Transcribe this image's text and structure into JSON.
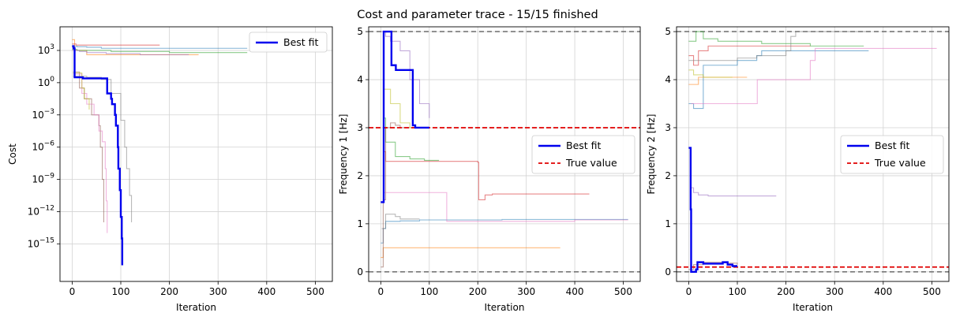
{
  "figure": {
    "title": "Cost and parameter trace - 15/15 finished"
  },
  "colors": {
    "best_fit": "#0000ee",
    "true_value": "#e00000",
    "bounds": "#777777",
    "grid": "#d3d3d3",
    "runs": [
      "#1f77b4",
      "#ff7f0e",
      "#2ca02c",
      "#d62728",
      "#9467bd",
      "#8c564b",
      "#e377c2",
      "#7f7f7f",
      "#bcbd22",
      "#17becf"
    ]
  },
  "chart_data": [
    {
      "type": "line",
      "ylabel": "Cost",
      "xlabel": "Iteration",
      "xlim": [
        -25,
        535
      ],
      "ylim_log10": [
        -18.5,
        5.2
      ],
      "yscale": "log",
      "grid": true,
      "legend": "top-right",
      "x_ticks": [
        "0",
        "100",
        "200",
        "300",
        "400",
        "500"
      ],
      "y_ticks": [
        {
          "value": 3,
          "label": "10^3"
        },
        {
          "value": 0,
          "label": "10^0"
        },
        {
          "value": -3,
          "label": "10^-3"
        },
        {
          "value": -6,
          "label": "10^-6"
        },
        {
          "value": -9,
          "label": "10^-9"
        },
        {
          "value": -12,
          "label": "10^-12"
        },
        {
          "value": -15,
          "label": "10^-15"
        }
      ],
      "best_fit": {
        "name": "Best fit",
        "x": [
          0,
          3,
          5,
          20,
          22,
          70,
          72,
          80,
          82,
          88,
          90,
          94,
          95,
          98,
          100,
          102,
          103
        ],
        "log10_y": [
          3.4,
          3.2,
          0.5,
          0.5,
          0.4,
          0.4,
          -1.0,
          -1.5,
          -2.0,
          -3.0,
          -4.0,
          -6.0,
          -8.0,
          -10.0,
          -12.5,
          -14.5,
          -17.0
        ]
      },
      "runs": [
        {
          "x": [
            0,
            5,
            10,
            30,
            60,
            360
          ],
          "log10_y": [
            3.3,
            3.4,
            3.35,
            3.3,
            3.2,
            3.2
          ]
        },
        {
          "x": [
            0,
            5,
            30,
            100,
            260
          ],
          "log10_y": [
            4.0,
            3.0,
            2.6,
            2.6,
            2.6
          ]
        },
        {
          "x": [
            0,
            10,
            80,
            200,
            360
          ],
          "log10_y": [
            3.1,
            3.0,
            2.9,
            2.8,
            2.8
          ]
        },
        {
          "x": [
            0,
            8,
            20,
            60,
            180
          ],
          "log10_y": [
            3.6,
            3.5,
            3.5,
            3.5,
            3.5
          ]
        },
        {
          "x": [
            0,
            15,
            30,
            70,
            100,
            140,
            240
          ],
          "log10_y": [
            3.0,
            2.9,
            2.8,
            2.7,
            2.7,
            2.6,
            2.6
          ]
        },
        {
          "x": [
            2,
            15,
            25,
            40,
            55,
            58,
            62,
            65
          ],
          "log10_y": [
            1.0,
            -0.5,
            -1.5,
            -3.0,
            -4.0,
            -6.0,
            -9.0,
            -13.0
          ]
        },
        {
          "x": [
            2,
            20,
            30,
            45,
            55,
            62,
            68,
            70,
            72
          ],
          "log10_y": [
            0.8,
            -1.0,
            -2.0,
            -3.0,
            -4.5,
            -5.5,
            -8.0,
            -11.0,
            -14.0
          ]
        },
        {
          "x": [
            2,
            30,
            60,
            80,
            100,
            108,
            112,
            118,
            122
          ],
          "log10_y": [
            0.6,
            0.5,
            0.3,
            -1.0,
            -3.5,
            -6.0,
            -8.0,
            -10.5,
            -13.0
          ]
        },
        {
          "x": [
            2,
            20,
            25,
            35
          ],
          "log10_y": [
            0.9,
            -0.5,
            -1.5,
            -2.5
          ]
        }
      ]
    },
    {
      "type": "line",
      "ylabel": "Frequency 1 [Hz]",
      "xlabel": "Iteration",
      "xlim": [
        -25,
        535
      ],
      "ylim": [
        -0.2,
        5.1
      ],
      "grid": true,
      "legend": "center-right",
      "x_ticks": [
        "0",
        "100",
        "200",
        "300",
        "400",
        "500"
      ],
      "y_ticks": [
        "0",
        "1",
        "2",
        "3",
        "4",
        "5"
      ],
      "bounds": [
        0,
        5
      ],
      "true_value": {
        "name": "True value",
        "value": 3.0
      },
      "best_fit": {
        "name": "Best fit",
        "x": [
          0,
          5,
          6,
          20,
          22,
          30,
          31,
          65,
          66,
          70,
          71,
          90,
          91,
          100
        ],
        "y": [
          1.45,
          1.45,
          5.0,
          5.0,
          4.3,
          4.3,
          4.2,
          4.2,
          3.05,
          3.05,
          3.0,
          3.0,
          3.0,
          3.0
        ]
      },
      "runs": [
        {
          "x": [
            0,
            5,
            10,
            40,
            60,
            80,
            120,
            250,
            380,
            440,
            510
          ],
          "y": [
            0.6,
            0.9,
            1.05,
            1.06,
            1.06,
            1.08,
            1.08,
            1.09,
            1.09,
            1.09,
            1.09
          ]
        },
        {
          "x": [
            0,
            5,
            10,
            30,
            150,
            250,
            370
          ],
          "y": [
            0.3,
            0.5,
            0.5,
            0.5,
            0.5,
            0.5,
            0.5
          ]
        },
        {
          "x": [
            5,
            10,
            30,
            60,
            90,
            120
          ],
          "y": [
            3.2,
            2.7,
            2.4,
            2.35,
            2.32,
            2.32
          ]
        },
        {
          "x": [
            5,
            10,
            20,
            50,
            100,
            200,
            202,
            215,
            230,
            430
          ],
          "y": [
            2.5,
            2.3,
            2.3,
            2.3,
            2.3,
            2.28,
            1.5,
            1.6,
            1.62,
            1.62
          ]
        },
        {
          "x": [
            0,
            10,
            20,
            40,
            60,
            80,
            100
          ],
          "y": [
            5.0,
            4.9,
            4.8,
            4.6,
            4.0,
            3.5,
            3.2
          ]
        },
        {
          "x": [
            0,
            5,
            10,
            20,
            30,
            40,
            60
          ],
          "y": [
            0.1,
            1.5,
            3.0,
            3.1,
            3.05,
            3.0,
            3.0
          ]
        },
        {
          "x": [
            5,
            20,
            135,
            136,
            200,
            300,
            400,
            510
          ],
          "y": [
            1.65,
            1.65,
            1.65,
            1.05,
            1.05,
            1.05,
            1.08,
            1.08
          ]
        },
        {
          "x": [
            2,
            10,
            30,
            40,
            60,
            80
          ],
          "y": [
            0.9,
            1.2,
            1.15,
            1.1,
            1.1,
            1.1
          ]
        },
        {
          "x": [
            5,
            20,
            40,
            60,
            90
          ],
          "y": [
            3.8,
            3.5,
            3.1,
            3.0,
            3.0
          ]
        }
      ]
    },
    {
      "type": "line",
      "ylabel": "Frequency 2 [Hz]",
      "xlabel": "Iteration",
      "xlim": [
        -25,
        535
      ],
      "ylim": [
        -0.2,
        5.1
      ],
      "grid": true,
      "legend": "center-right",
      "x_ticks": [
        "0",
        "100",
        "200",
        "300",
        "400",
        "500"
      ],
      "y_ticks": [
        "0",
        "1",
        "2",
        "3",
        "4",
        "5"
      ],
      "bounds": [
        0,
        5
      ],
      "true_value": {
        "name": "True value",
        "value": 0.1
      },
      "best_fit": {
        "name": "Best fit",
        "x": [
          0,
          3,
          4,
          5,
          6,
          15,
          18,
          25,
          30,
          60,
          70,
          80,
          90,
          100
        ],
        "y": [
          2.58,
          2.58,
          1.3,
          0.0,
          0.0,
          0.05,
          0.2,
          0.2,
          0.17,
          0.17,
          0.2,
          0.15,
          0.12,
          0.12
        ]
      },
      "runs": [
        {
          "x": [
            0,
            10,
            30,
            100,
            140,
            150,
            370
          ],
          "y": [
            3.5,
            3.4,
            4.3,
            4.4,
            4.5,
            4.6,
            4.6
          ]
        },
        {
          "x": [
            0,
            20,
            40,
            80,
            120
          ],
          "y": [
            3.9,
            4.05,
            4.05,
            4.05,
            4.05
          ]
        },
        {
          "x": [
            0,
            15,
            30,
            60,
            100,
            150,
            200,
            250,
            300,
            360
          ],
          "y": [
            4.8,
            5.0,
            4.85,
            4.8,
            4.8,
            4.75,
            4.75,
            4.7,
            4.7,
            4.7
          ]
        },
        {
          "x": [
            0,
            10,
            20,
            40,
            60,
            80,
            110,
            150,
            200,
            250
          ],
          "y": [
            4.5,
            4.3,
            4.6,
            4.7,
            4.7,
            4.7,
            4.7,
            4.7,
            4.7,
            4.7
          ]
        },
        {
          "x": [
            5,
            10,
            20,
            40,
            80,
            120,
            180
          ],
          "y": [
            1.75,
            1.65,
            1.6,
            1.58,
            1.58,
            1.58,
            1.58
          ]
        },
        {
          "x": [
            0,
            10,
            30,
            50,
            80,
            100
          ],
          "y": [
            0.05,
            0.15,
            0.2,
            0.2,
            0.18,
            0.15
          ]
        },
        {
          "x": [
            5,
            20,
            140,
            141,
            200,
            250,
            260,
            510
          ],
          "y": [
            3.5,
            3.5,
            3.5,
            4.0,
            4.0,
            4.4,
            4.65,
            4.65
          ]
        },
        {
          "x": [
            0,
            20,
            100,
            140,
            200,
            210,
            220,
            370
          ],
          "y": [
            4.4,
            4.4,
            4.45,
            4.5,
            4.6,
            4.9,
            5.0,
            5.0
          ]
        },
        {
          "x": [
            0,
            10,
            30,
            60,
            90
          ],
          "y": [
            4.2,
            4.1,
            4.05,
            4.05,
            4.05
          ]
        }
      ]
    }
  ]
}
